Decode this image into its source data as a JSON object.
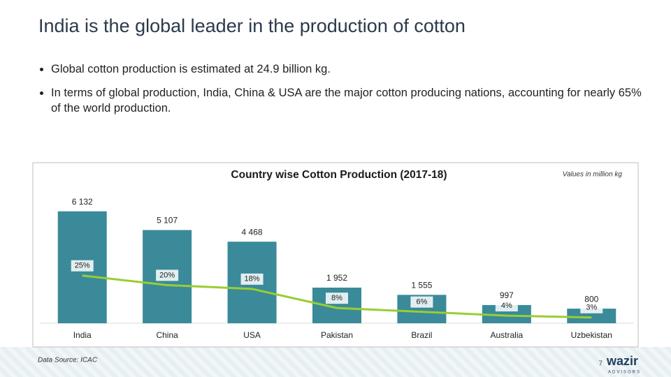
{
  "title": "India is the global leader in the production of cotton",
  "bullets": [
    "Global cotton production is estimated at 24.9 billion kg.",
    "In terms of global production, India, China & USA are the major cotton producing nations, accounting for nearly 65% of the world production."
  ],
  "chart_data": {
    "type": "bar",
    "title": "Country wise Cotton Production (2017-18)",
    "note": "Values in million kg",
    "source": "Data Source: ICAC",
    "categories": [
      "India",
      "China",
      "USA",
      "Pakistan",
      "Brazil",
      "Australia",
      "Uzbekistan"
    ],
    "series": [
      {
        "type": "bar",
        "color": "#3a8a99",
        "values": [
          6132,
          5107,
          4468,
          1952,
          1555,
          997,
          800
        ],
        "value_labels": [
          "6 132",
          "5 107",
          "4 468",
          "1 952",
          "1 555",
          "997",
          "800"
        ]
      },
      {
        "type": "line",
        "axis": "y2",
        "color": "#9acd32",
        "values": [
          25,
          20,
          18,
          8,
          6,
          4,
          3
        ],
        "value_labels": [
          "25%",
          "20%",
          "18%",
          "8%",
          "6%",
          "4%",
          "3%"
        ]
      }
    ],
    "ylim": [
      0,
      7000
    ],
    "y2lim": [
      0,
      67
    ]
  },
  "page_number": "7",
  "logo": {
    "name": "wazir",
    "tagline": "ADVISORS"
  }
}
